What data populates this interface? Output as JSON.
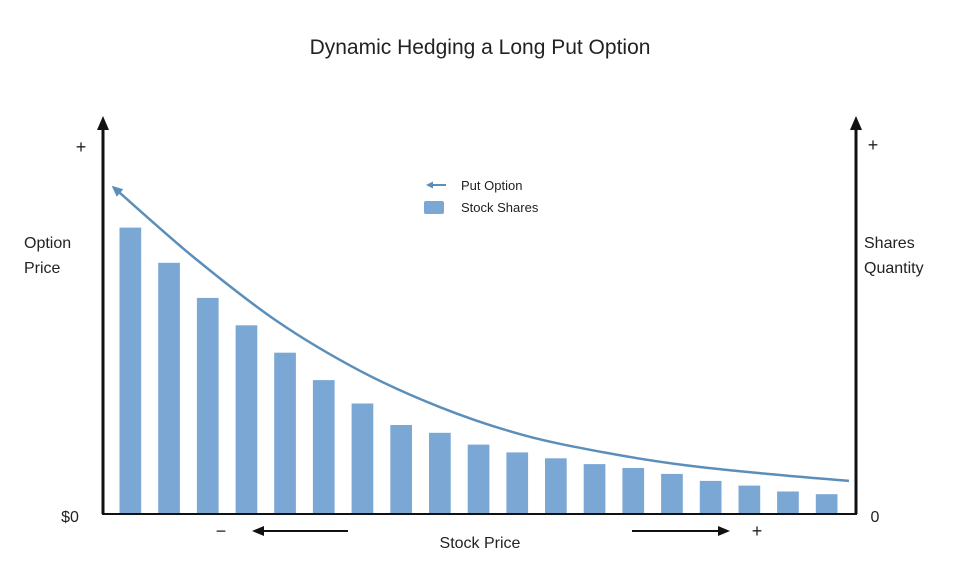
{
  "chart_data": {
    "type": "bar",
    "title": "Dynamic Hedging a Long Put Option",
    "xlabel": "Stock Price",
    "ylabel_left": "Option Price",
    "ylabel_right": "Shares Quantity",
    "left_axis": {
      "top_label": "+",
      "bottom_label": "$0"
    },
    "right_axis": {
      "top_label": "+",
      "bottom_label": "0"
    },
    "x_direction": {
      "decrease_label": "−",
      "increase_label": "+"
    },
    "ylim": [
      0,
      100
    ],
    "series": [
      {
        "name": "Stock Shares",
        "kind": "bar",
        "color": "#7ba7d4",
        "values": [
          73,
          64,
          55,
          48,
          41,
          34,
          28,
          22.5,
          20.5,
          17.5,
          15.5,
          14,
          12.5,
          11.5,
          10,
          8.2,
          7,
          5.5,
          4.8
        ]
      },
      {
        "name": "Put Option",
        "kind": "line",
        "color": "#5b8fba",
        "x": [
          0,
          2,
          4,
          6,
          8,
          10,
          12,
          14,
          16,
          18
        ],
        "values": [
          83.2,
          65,
          49,
          36.5,
          27,
          20,
          15.5,
          12.2,
          10,
          8.2
        ]
      }
    ],
    "legend": {
      "position": "top-center",
      "entries": [
        "Put Option",
        "Stock Shares"
      ]
    },
    "grid": false
  }
}
